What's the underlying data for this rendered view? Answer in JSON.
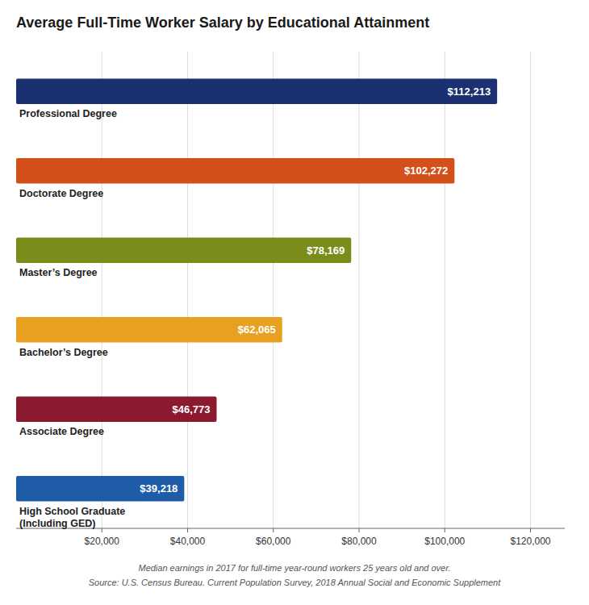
{
  "chart_data": {
    "type": "bar",
    "orientation": "horizontal",
    "title": "Average Full-Time Worker Salary by Educational Attainment",
    "categories": [
      "High School Graduate\n(Including GED)",
      "Associate Degree",
      "Bachelor’s Degree",
      "Master’s Degree",
      "Doctorate Degree",
      "Professional Degree"
    ],
    "values": [
      39218,
      46773,
      62065,
      78169,
      102272,
      112213
    ],
    "value_labels": [
      "$39,218",
      "$46,773",
      "$62,065",
      "$78,169",
      "$102,272",
      "$112,213"
    ],
    "data_labels": true,
    "colors": [
      "#1e5ca8",
      "#8b1a2e",
      "#e8a020",
      "#7a8c1a",
      "#d4501a",
      "#1a3070"
    ],
    "xlim": [
      0,
      128000
    ],
    "xticks": [
      {
        "value": 20000,
        "label": "$20,000"
      },
      {
        "value": 40000,
        "label": "$40,000"
      },
      {
        "value": 60000,
        "label": "$60,000"
      },
      {
        "value": 80000,
        "label": "$80,000"
      },
      {
        "value": 100000,
        "label": "$100,000"
      },
      {
        "value": 120000,
        "label": "$120,000"
      }
    ],
    "grid": true,
    "annotations": [
      "Median earnings in 2017 for full-time year-round workers 25 years old and over.",
      "Source: U.S. Census Bureau. Current Population Survey, 2018 Annual Social and Economic Supplement"
    ]
  }
}
